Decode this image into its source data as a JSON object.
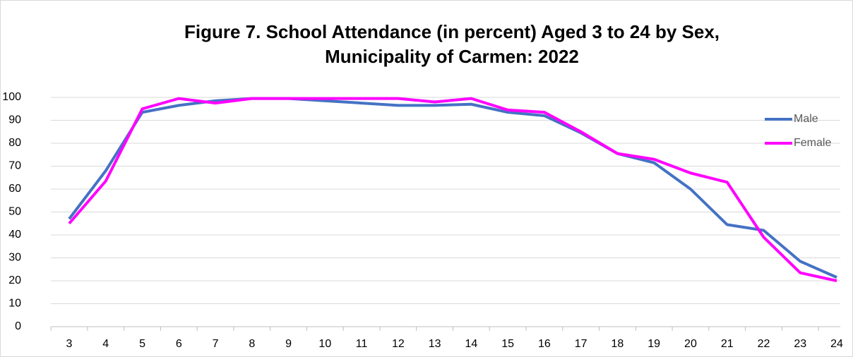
{
  "chart_data": {
    "type": "line",
    "title": [
      "Figure 7. School Attendance (in percent) Aged 3 to 24 by Sex,",
      "Municipality of Carmen: 2022"
    ],
    "categories": [
      "3",
      "4",
      "5",
      "6",
      "7",
      "8",
      "9",
      "10",
      "11",
      "12",
      "13",
      "14",
      "15",
      "16",
      "17",
      "18",
      "19",
      "20",
      "21",
      "22",
      "23",
      "24"
    ],
    "series": [
      {
        "name": "Male",
        "color": "#4472c4",
        "values": [
          47,
          68,
          93.5,
          96.5,
          98.5,
          99.5,
          99.5,
          98.5,
          97.5,
          96.5,
          96.5,
          97,
          93.5,
          92,
          84.5,
          75.5,
          71.5,
          60,
          44.5,
          42,
          28.5,
          21.5
        ]
      },
      {
        "name": "Female",
        "color": "#ff00ff",
        "values": [
          45,
          63.5,
          95,
          99.5,
          97.5,
          99.5,
          99.5,
          99.5,
          99.5,
          99.5,
          98,
          99.5,
          94.5,
          93.5,
          85,
          75.5,
          73,
          67,
          63,
          39,
          23.5,
          20
        ]
      }
    ],
    "ylim": [
      0,
      100
    ],
    "yticks": [
      0,
      10,
      20,
      30,
      40,
      50,
      60,
      70,
      80,
      90,
      100
    ],
    "grid": true,
    "legend": "right"
  }
}
